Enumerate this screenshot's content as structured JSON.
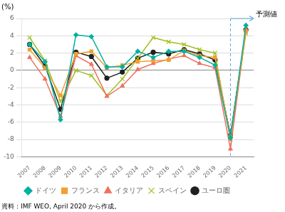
{
  "chart_data": {
    "type": "line",
    "y_label": "(%)",
    "source": "資料：IMF WEO, April 2020 から作成。",
    "x": [
      2007,
      2008,
      2009,
      2010,
      2011,
      2012,
      2013,
      2014,
      2015,
      2016,
      2017,
      2018,
      2019,
      2020,
      2021
    ],
    "xlim": [
      2006.5,
      2021.5
    ],
    "xticks": [
      2007,
      2008,
      2009,
      2010,
      2011,
      2012,
      2013,
      2014,
      2015,
      2016,
      2017,
      2018,
      2019,
      2020,
      2021
    ],
    "ylim": [
      -10,
      6
    ],
    "yticks": [
      -10,
      -8,
      -6,
      -4,
      -2,
      0,
      2,
      4,
      6
    ],
    "grid": "y",
    "legend": "bottom",
    "series": [
      {
        "name": "ドイツ",
        "color": "#00b0a0",
        "marker": "diamond",
        "values": [
          3.0,
          1.0,
          -5.7,
          4.1,
          3.9,
          0.4,
          0.4,
          2.2,
          1.5,
          2.2,
          2.2,
          1.5,
          0.6,
          -7.8,
          5.2
        ]
      },
      {
        "name": "フランス",
        "color": "#f0a030",
        "marker": "square",
        "values": [
          2.4,
          0.3,
          -2.9,
          1.9,
          2.2,
          0.3,
          0.6,
          1.0,
          1.1,
          1.2,
          2.3,
          1.7,
          1.5,
          -7.7,
          4.5
        ]
      },
      {
        "name": "イタリア",
        "color": "#f07060",
        "marker": "triangle",
        "values": [
          1.5,
          -1.0,
          -5.3,
          1.7,
          0.7,
          -3.0,
          -1.8,
          0.1,
          0.8,
          1.3,
          1.7,
          0.8,
          0.3,
          -9.1,
          4.8
        ]
      },
      {
        "name": "スペイン",
        "color": "#a0c020",
        "marker": "x",
        "values": [
          3.8,
          1.1,
          -3.6,
          0.0,
          -0.6,
          -2.9,
          -1.0,
          1.4,
          3.8,
          3.3,
          3.0,
          2.4,
          2.0,
          -8.0,
          4.3
        ]
      },
      {
        "name": "ユーロ圏",
        "color": "#202020",
        "marker": "circle",
        "values": [
          3.0,
          0.5,
          -4.5,
          2.1,
          1.6,
          -0.9,
          -0.2,
          1.4,
          2.1,
          1.9,
          2.4,
          1.9,
          1.2,
          -7.5,
          4.7
        ]
      }
    ],
    "annotations": [
      {
        "text": "予測値",
        "x": 2020,
        "color": "#5aabdc"
      }
    ]
  }
}
